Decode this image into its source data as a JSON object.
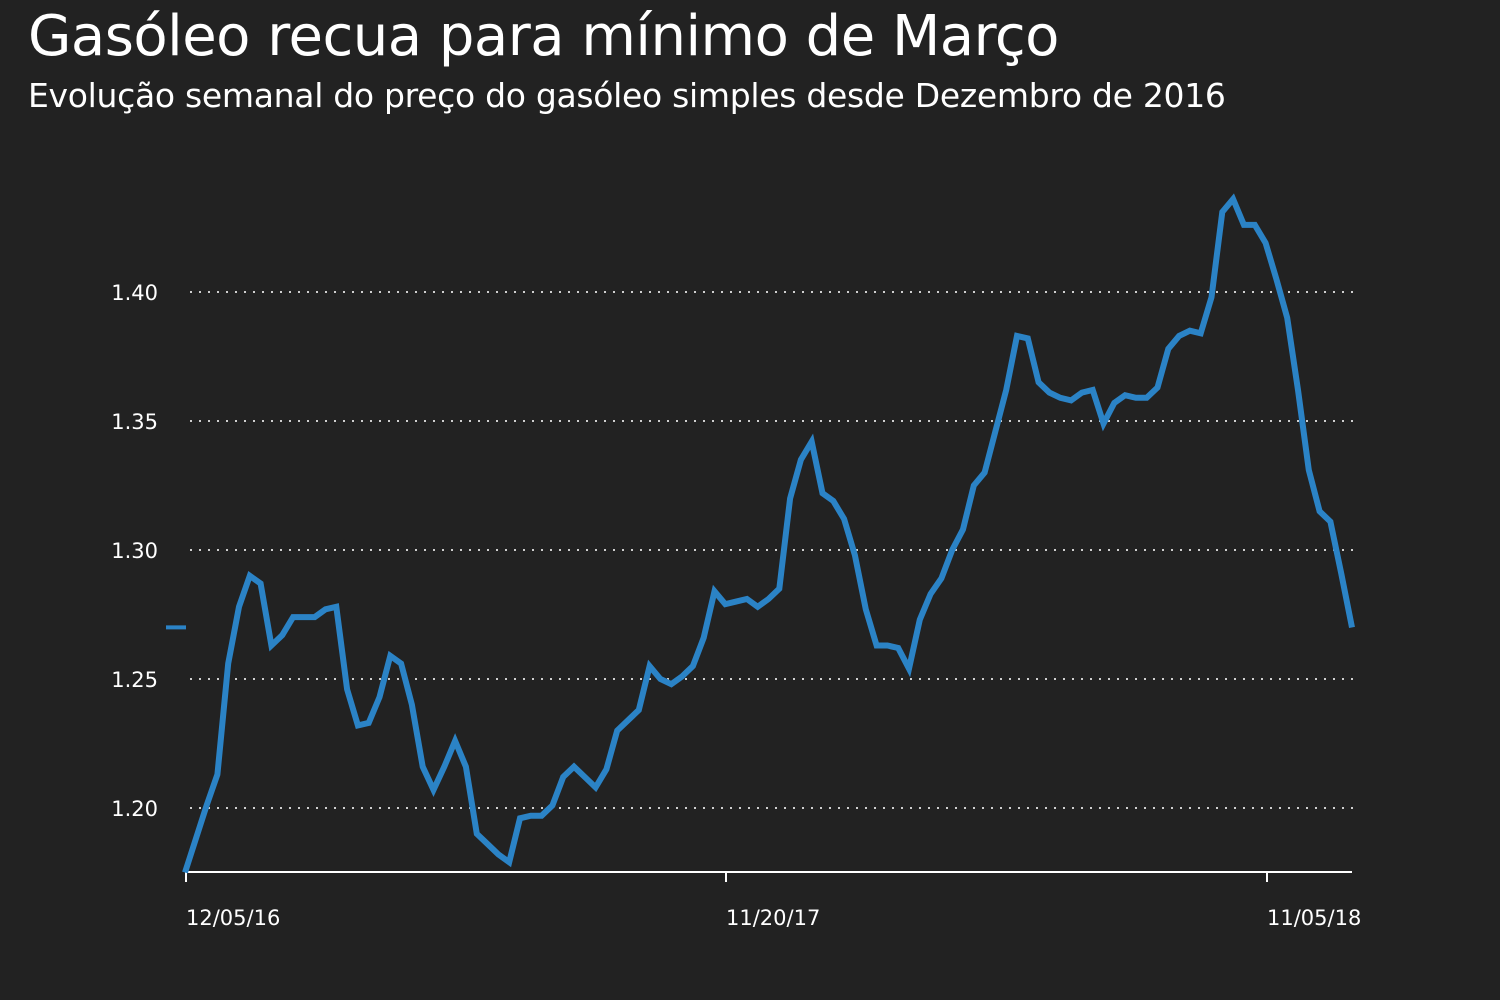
{
  "title": "Gasóleo recua para mínimo de Março",
  "subtitle": "Evolução semanal do preço do gasóleo simples desde Dezembro de 2016",
  "chart_data": {
    "type": "line",
    "title": "Gasóleo recua para mínimo de Março",
    "subtitle": "Evolução semanal do preço do gasóleo simples desde Dezembro de 2016",
    "xlabel": "",
    "ylabel": "",
    "ylim": [
      1.175,
      1.44
    ],
    "yticks": [
      1.2,
      1.25,
      1.3,
      1.35,
      1.4
    ],
    "ytick_labels": [
      "1.20",
      "1.25",
      "1.30",
      "1.35",
      "1.40"
    ],
    "xtick_labels": [
      "12/05/16",
      "11/20/17",
      "11/05/18"
    ],
    "grid": true,
    "last_value_marker": 1.27,
    "colors": {
      "background": "#222222",
      "line": "#2b83c6",
      "text": "#ffffff",
      "grid": "#cfcfcf"
    },
    "series": [
      {
        "values": [
          1.175,
          1.188,
          1.201,
          1.213,
          1.256,
          1.278,
          1.29,
          1.287,
          1.263,
          1.267,
          1.274,
          1.274,
          1.274,
          1.277,
          1.278,
          1.246,
          1.232,
          1.233,
          1.243,
          1.259,
          1.256,
          1.24,
          1.216,
          1.207,
          1.216,
          1.226,
          1.216,
          1.19,
          1.186,
          1.182,
          1.179,
          1.196,
          1.197,
          1.197,
          1.201,
          1.212,
          1.216,
          1.212,
          1.208,
          1.215,
          1.23,
          1.234,
          1.238,
          1.255,
          1.25,
          1.248,
          1.251,
          1.255,
          1.266,
          1.284,
          1.279,
          1.28,
          1.281,
          1.278,
          1.281,
          1.285,
          1.32,
          1.335,
          1.342,
          1.322,
          1.319,
          1.312,
          1.298,
          1.277,
          1.263,
          1.263,
          1.262,
          1.254,
          1.273,
          1.283,
          1.289,
          1.3,
          1.308,
          1.325,
          1.33,
          1.346,
          1.362,
          1.383,
          1.382,
          1.365,
          1.361,
          1.359,
          1.358,
          1.361,
          1.362,
          1.349,
          1.357,
          1.36,
          1.359,
          1.359,
          1.363,
          1.378,
          1.383,
          1.385,
          1.384,
          1.398,
          1.431,
          1.436,
          1.426,
          1.426,
          1.419,
          1.405,
          1.39,
          1.362,
          1.331,
          1.315,
          1.311,
          1.291,
          1.27
        ]
      }
    ]
  }
}
